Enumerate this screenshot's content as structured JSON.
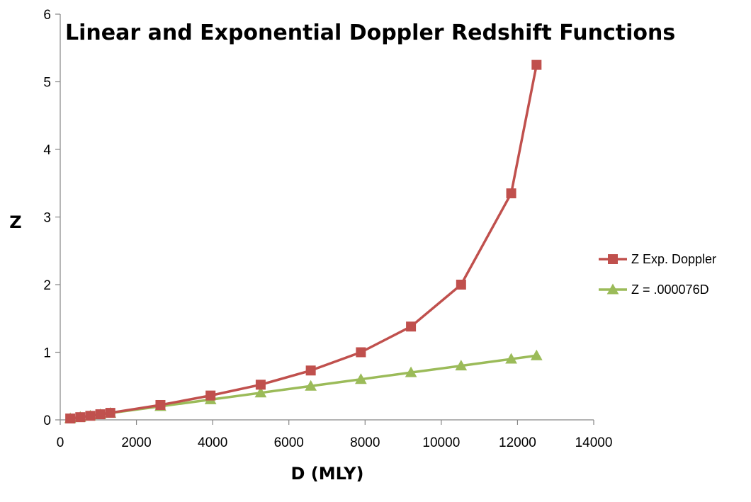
{
  "chart_data": {
    "type": "line",
    "title": "Linear and Exponential Doppler Redshift Functions",
    "xlabel": "D (MLY)",
    "ylabel": "Z",
    "xlim": [
      0,
      14000
    ],
    "ylim": [
      0,
      6
    ],
    "x_ticks": [
      0,
      2000,
      4000,
      6000,
      8000,
      10000,
      12000,
      14000
    ],
    "y_ticks": [
      0,
      1,
      2,
      3,
      4,
      5,
      6
    ],
    "grid": false,
    "legend_position": "right",
    "series": [
      {
        "name": "Z Exp. Doppler",
        "color": "#C0504D",
        "marker": "square",
        "x": [
          263,
          526,
          789,
          1052,
          1315,
          2630,
          3945,
          5260,
          6575,
          7890,
          9205,
          10520,
          11835,
          12500
        ],
        "y": [
          0.02,
          0.04,
          0.06,
          0.083,
          0.104,
          0.22,
          0.36,
          0.52,
          0.73,
          1.0,
          1.38,
          2.0,
          3.35,
          5.25
        ]
      },
      {
        "name": "Z = .000076D",
        "color": "#9BBB59",
        "marker": "triangle",
        "x": [
          263,
          526,
          789,
          1052,
          1315,
          2630,
          3945,
          5260,
          6575,
          7890,
          9205,
          10520,
          11835,
          12500
        ],
        "y": [
          0.02,
          0.04,
          0.06,
          0.08,
          0.1,
          0.2,
          0.3,
          0.4,
          0.5,
          0.6,
          0.7,
          0.8,
          0.9,
          0.95
        ]
      }
    ]
  }
}
